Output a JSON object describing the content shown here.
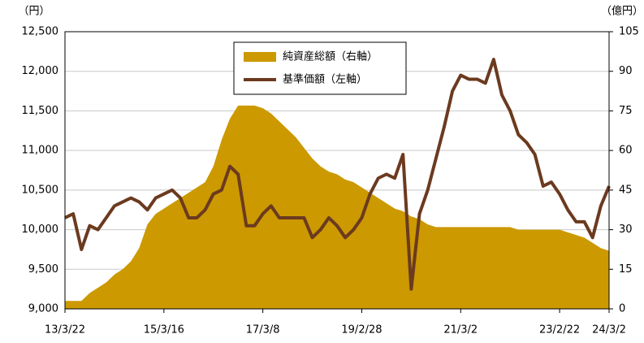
{
  "chart_data": {
    "type": "line",
    "y_label": "（円）",
    "y2_label": "（億円）",
    "categories": [
      "13/3/22",
      null,
      null,
      null,
      null,
      null,
      null,
      null,
      null,
      null,
      null,
      null,
      "15/3/16",
      null,
      null,
      null,
      null,
      null,
      null,
      null,
      null,
      null,
      null,
      null,
      "17/3/8",
      null,
      null,
      null,
      null,
      null,
      null,
      null,
      null,
      null,
      null,
      null,
      "19/2/28",
      null,
      null,
      null,
      null,
      null,
      null,
      null,
      null,
      null,
      null,
      null,
      "21/3/2",
      null,
      null,
      null,
      null,
      null,
      null,
      null,
      null,
      null,
      null,
      null,
      "23/2/22",
      null,
      null,
      null,
      null,
      null,
      "24/3/2"
    ],
    "series": [
      {
        "name": "純資産総額（右軸）",
        "type": "area",
        "axis": "y2",
        "color": "#cc9900",
        "values": [
          3,
          3,
          3,
          6,
          8,
          10,
          13,
          15,
          18,
          23,
          32,
          36,
          38,
          40,
          42,
          44,
          46,
          48,
          54,
          64,
          72,
          77,
          77,
          77,
          76,
          74,
          71,
          68,
          65,
          61,
          57,
          54,
          52,
          51,
          49,
          48,
          46,
          44,
          42,
          40,
          38,
          37,
          35,
          34,
          32,
          31,
          31,
          31,
          31,
          31,
          31,
          31,
          31,
          31,
          31,
          30,
          30,
          30,
          30,
          30,
          30,
          29,
          28,
          27,
          25,
          23,
          22
        ]
      },
      {
        "name": "基準価額（左軸）",
        "type": "line",
        "color": "#6b3a1f",
        "values": [
          10150,
          10200,
          9750,
          10050,
          10000,
          10150,
          10300,
          10350,
          10400,
          10350,
          10250,
          10400,
          10450,
          10500,
          10400,
          10150,
          10150,
          10250,
          10450,
          10500,
          10800,
          10700,
          10050,
          10050,
          10200,
          10300,
          10150,
          10150,
          10150,
          10150,
          9900,
          10000,
          10150,
          10050,
          9900,
          10000,
          10150,
          10450,
          10650,
          10700,
          10650,
          10950,
          9250,
          10200,
          10500,
          10900,
          11300,
          11750,
          11950,
          11900,
          11900,
          11850,
          12150,
          11700,
          11500,
          11200,
          11100,
          10950,
          10550,
          10600,
          10450,
          10250,
          10100,
          10100,
          9900,
          10300,
          10550
        ]
      }
    ],
    "ylim": [
      9000,
      12500
    ],
    "yticks": [
      {
        "value": 9000,
        "label": "9,000"
      },
      {
        "value": 9500,
        "label": "9,500"
      },
      {
        "value": 10000,
        "label": "10,000"
      },
      {
        "value": 10500,
        "label": "10,500"
      },
      {
        "value": 11000,
        "label": "11,000"
      },
      {
        "value": 11500,
        "label": "11,500"
      },
      {
        "value": 12000,
        "label": "12,000"
      },
      {
        "value": 12500,
        "label": "12,500"
      }
    ],
    "y2lim": [
      0,
      105
    ],
    "y2ticks": [
      0,
      15,
      30,
      45,
      60,
      75,
      90,
      105
    ],
    "grid": true
  }
}
